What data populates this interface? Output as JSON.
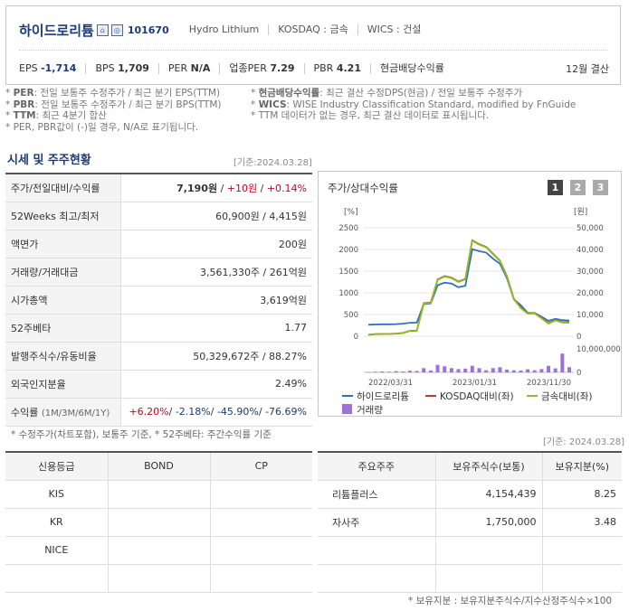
{
  "header": {
    "company": "하이드로리튬",
    "code": "101670",
    "eng_name": "Hydro Lithium",
    "market": "KOSDAQ : 금속",
    "wics": "WICS : 건설",
    "stats": [
      {
        "label": "EPS",
        "value": "-1,714"
      },
      {
        "label": "BPS",
        "value": "1,709"
      },
      {
        "label": "PER",
        "value": "N/A"
      },
      {
        "label": "업종PER",
        "value": "7.29"
      },
      {
        "label": "PBR",
        "value": "4.21"
      },
      {
        "label": "현금배당수익률",
        "value": ""
      }
    ],
    "settlement": "12월 결산"
  },
  "notes": {
    "per": "PER",
    "per_text": ": 전일 보통주 수정주가 / 최근 분기 EPS(TTM)",
    "pbr": "PBR",
    "pbr_text": ": 전일 보통주 수정주가 / 최근 분기 BPS(TTM)",
    "ttm": "TTM",
    "ttm_text": ": 최근 4분기 합산",
    "extra": "* PER, PBR값이 (-)일 경우, N/A로 표기됩니다.",
    "div": "현금배당수익률",
    "div_text": ": 최근 결산 수정DPS(현금) / 전일 보통주 수정주가",
    "wics": "WICS",
    "wics_text": ": WISE Industry Classification Standard, modified by FnGuide",
    "ttm_note": "* TTM 데이터가 없는 경우, 최근 결산 데이터로 표시됩니다."
  },
  "section": {
    "title": "시세 및 주주현황",
    "date": "[기준:2024.03.28]"
  },
  "quote": {
    "rows": [
      {
        "label": "주가/전일대비/수익률",
        "price": "7,190원",
        "change": "+10원",
        "pct": "+0.14%"
      },
      {
        "label": "52Weeks 최고/최저",
        "value": "60,900원 / 4,415원"
      },
      {
        "label": "액면가",
        "value": "200원"
      },
      {
        "label": "거래량/거래대금",
        "value": "3,561,330주 / 261억원"
      },
      {
        "label": "시가총액",
        "value": "3,619억원"
      },
      {
        "label": "52주베타",
        "value": "1.77"
      },
      {
        "label": "발행주식수/유동비율",
        "value": "50,329,672주 / 88.27%"
      },
      {
        "label": "외국인지분율",
        "value": "2.49%"
      }
    ],
    "returns": {
      "label": "수익률",
      "sub": "(1M/3M/6M/1Y)",
      "v1": "+6.20%",
      "v2": "-2.18%",
      "v3": "-45.90%",
      "v4": "-76.69%"
    }
  },
  "quote_footnote": "* 수정주가(차트포함), 보통주 기준, * 52주베타: 주간수익률 기준",
  "chart_box": {
    "title": "주가/상대수익률",
    "pages": [
      "1",
      "2",
      "3"
    ],
    "left_unit": "[%]",
    "right_unit": "[원]",
    "left_ticks": [
      "2500",
      "2000",
      "1500",
      "1000",
      "500",
      "0"
    ],
    "right_ticks": [
      "50,000",
      "40,000",
      "30,000",
      "20,000",
      "10,000",
      "0"
    ],
    "vol_ticks": [
      "10,000,000",
      "0"
    ],
    "x_ticks": [
      "2022/03/31",
      "2023/01/31",
      "2023/11/30"
    ],
    "legend": [
      "하이드로리튬",
      "KOSDAQ대비(좌)",
      "금속대비(좌)",
      "거래량"
    ]
  },
  "chart_data": {
    "type": "line",
    "series": [
      {
        "name": "하이드로리튬",
        "color": "#2f6fbf",
        "values": [
          5300,
          5400,
          5500,
          5500,
          5600,
          5800,
          6200,
          6300,
          14800,
          15100,
          23500,
          24700,
          24300,
          22600,
          23300,
          40100,
          39200,
          38600,
          35700,
          33400,
          26800,
          17000,
          14300,
          10800,
          10700,
          9000,
          7100,
          8000,
          7400,
          7200
        ]
      },
      {
        "name": "KOSDAQ대비(좌)",
        "color": "#c0392b",
        "values": [
          35,
          50,
          52,
          55,
          60,
          75,
          125,
          130,
          760,
          775,
          1310,
          1385,
          1350,
          1260,
          1320,
          2210,
          2120,
          2060,
          1900,
          1740,
          1390,
          860,
          660,
          530,
          530,
          420,
          300,
          370,
          325,
          320
        ]
      },
      {
        "name": "금속대비(좌)",
        "color": "#8dbf1e",
        "values": [
          30,
          45,
          48,
          52,
          55,
          70,
          120,
          125,
          750,
          765,
          1300,
          1375,
          1340,
          1250,
          1310,
          2200,
          2110,
          2050,
          1890,
          1730,
          1380,
          850,
          650,
          520,
          525,
          410,
          290,
          365,
          315,
          310
        ]
      }
    ],
    "volume": {
      "name": "거래량",
      "color": "#9b72d6",
      "values": [
        200000,
        300000,
        400000,
        300000,
        500000,
        400000,
        700000,
        600000,
        1800000,
        800000,
        3200000,
        2600000,
        1800000,
        1400000,
        1600000,
        2800000,
        1800000,
        900000,
        1800000,
        2200000,
        1200000,
        900000,
        800000,
        1300000,
        900000,
        1400000,
        2800000,
        1700000,
        8000000,
        2200000
      ]
    },
    "x_labels": [
      "2022/03/31",
      "2023/01/31",
      "2023/11/30"
    ],
    "y_left_range": [
      0,
      2500
    ],
    "y_right_range": [
      0,
      50000
    ],
    "volume_range": [
      0,
      10000000
    ]
  },
  "credit": {
    "date": "[기준: 2024.03.28]",
    "headers": [
      "신용등급",
      "BOND",
      "CP"
    ],
    "rows": [
      [
        "KIS",
        "",
        ""
      ],
      [
        "KR",
        "",
        ""
      ],
      [
        "NICE",
        "",
        ""
      ],
      [
        "",
        "",
        ""
      ]
    ]
  },
  "holders": {
    "headers": [
      "주요주주",
      "보유주식수(보통)",
      "보유지분(%)"
    ],
    "rows": [
      [
        "리튬플러스",
        "4,154,439",
        "8.25"
      ],
      [
        "자사주",
        "1,750,000",
        "3.48"
      ],
      [
        "",
        "",
        ""
      ],
      [
        "",
        "",
        ""
      ]
    ]
  },
  "holders_footnote": "* 보유지분 : 보유지분주식수/지수산정주식수×100"
}
